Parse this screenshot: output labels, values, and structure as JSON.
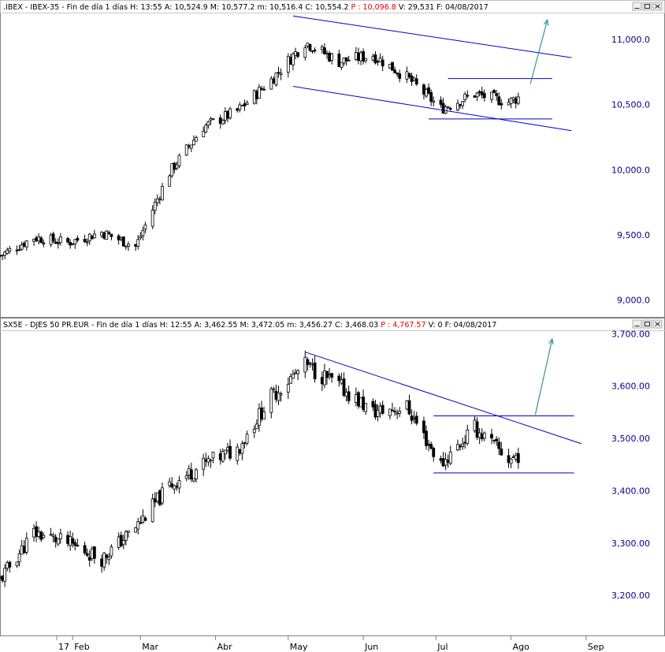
{
  "panel1": {
    "header": {
      "symbol": ".IBEX",
      "name": "IBEX-35",
      "period": "Fin de día 1 días",
      "H": "H: 13:55",
      "A": "A: 10,524.9",
      "M": "M: 10,577.2",
      "m": "m: 10,516.4",
      "C": "C: 10,554.2",
      "P": "P : 10,096.8",
      "V": "V: 29,531",
      "F": "F: 04/08/2017"
    }
  },
  "panel2": {
    "header": {
      "symbol": "SX5E",
      "name": "DJES 50 PR.EUR",
      "period": "Fin de día 1 días",
      "H": "H: 12:55",
      "A": "A: 3,462.55",
      "M": "M: 3,472.05",
      "m": "m: 3,456.27",
      "C": "C: 3,468.03",
      "P": "P : 4,767.57",
      "V": "V: 0",
      "F": "F: 04/08/2017"
    }
  },
  "x_axis": {
    "labels": [
      "17",
      "Feb",
      "Mar",
      "Abr",
      "May",
      "Jun",
      "Jul",
      "Ago",
      "Sep"
    ]
  },
  "colors": {
    "candle": "#000000",
    "trendline": "#0000cd",
    "arrow": "#3a8f9a",
    "axis_text": "#00008b",
    "header_red": "#e00000"
  },
  "chart_data": [
    {
      "type": "candlestick",
      "title": ".IBEX - IBEX-35 - Fin de día 1 días",
      "ytick_labels": [
        "9,000.0",
        "9,500.0",
        "10,000.0",
        "10,500.0",
        "11,000.0"
      ],
      "ylim": [
        8870,
        11200
      ],
      "xlim": [
        "2017-01-02",
        "2017-09-16"
      ],
      "series": [
        {
          "x": [
            "2017-01-02",
            "2017-01-16",
            "2017-01-30",
            "2017-02-13",
            "2017-02-27",
            "2017-03-13",
            "2017-03-27",
            "2017-04-10",
            "2017-04-24",
            "2017-05-08",
            "2017-05-22",
            "2017-06-05",
            "2017-06-19",
            "2017-07-03",
            "2017-07-17",
            "2017-07-31",
            "2017-08-04"
          ],
          "close": [
            9340,
            9480,
            9440,
            9520,
            9410,
            9980,
            10330,
            10450,
            10690,
            10980,
            10830,
            10880,
            10710,
            10470,
            10580,
            10520,
            10554
          ]
        }
      ],
      "annotations": [
        {
          "type": "channel",
          "from": [
            "2017-05-03",
            11180
          ],
          "to": [
            "2017-08-26",
            10860
          ]
        },
        {
          "type": "channel",
          "from": [
            "2017-05-03",
            10640
          ],
          "to": [
            "2017-08-26",
            10300
          ]
        },
        {
          "type": "resistance",
          "from": [
            "2017-07-06",
            10700
          ],
          "to": [
            "2017-08-18",
            10700
          ]
        },
        {
          "type": "support",
          "from": [
            "2017-06-28",
            10390
          ],
          "to": [
            "2017-08-18",
            10390
          ]
        },
        {
          "type": "arrow_up",
          "from": [
            "2017-08-09",
            10660
          ],
          "to": [
            "2017-08-16",
            11150
          ]
        }
      ]
    },
    {
      "type": "candlestick",
      "title": "SX5E - DJES 50 PR.EUR - Fin de día 1 días",
      "ytick_labels": [
        "3,200.00",
        "3,300.00",
        "3,400.00",
        "3,500.00",
        "3,600.00",
        "3,700.00"
      ],
      "ylim": [
        3125,
        3705
      ],
      "xlim": [
        "2017-01-02",
        "2017-09-16"
      ],
      "series": [
        {
          "x": [
            "2017-01-02",
            "2017-01-16",
            "2017-01-30",
            "2017-02-13",
            "2017-02-27",
            "2017-03-13",
            "2017-03-27",
            "2017-04-10",
            "2017-04-24",
            "2017-05-08",
            "2017-05-22",
            "2017-06-05",
            "2017-06-19",
            "2017-07-03",
            "2017-07-17",
            "2017-07-31",
            "2017-08-04"
          ],
          "close": [
            3230,
            3320,
            3300,
            3270,
            3330,
            3410,
            3450,
            3480,
            3580,
            3640,
            3600,
            3550,
            3560,
            3450,
            3520,
            3460,
            3468
          ]
        }
      ],
      "annotations": [
        {
          "type": "trendline",
          "from": [
            "2017-05-08",
            3665
          ],
          "to": [
            "2017-08-30",
            3490
          ]
        },
        {
          "type": "resistance",
          "from": [
            "2017-06-30",
            3543
          ],
          "to": [
            "2017-08-27",
            3543
          ]
        },
        {
          "type": "support",
          "from": [
            "2017-06-30",
            3434
          ],
          "to": [
            "2017-08-27",
            3434
          ]
        },
        {
          "type": "arrow_up",
          "from": [
            "2017-08-11",
            3545
          ],
          "to": [
            "2017-08-18",
            3690
          ]
        }
      ]
    }
  ]
}
